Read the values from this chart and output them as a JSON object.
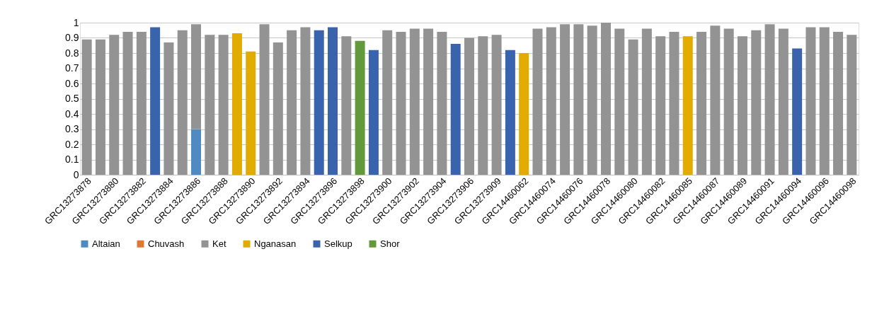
{
  "chart_data": {
    "type": "bar",
    "stacked": true,
    "categories": [
      "GRC13273878",
      null,
      "GRC13273880",
      null,
      "GRC13273882",
      null,
      "GRC13273884",
      null,
      "GRC13273886",
      null,
      "GRC13273888",
      null,
      "GRC13273890",
      null,
      "GRC13273892",
      null,
      "GRC13273894",
      null,
      "GRC13273896",
      null,
      "GRC13273898",
      null,
      "GRC13273900",
      null,
      "GRC13273902",
      null,
      "GRC13273904",
      null,
      "GRC13273906",
      null,
      "GRC13273909",
      null,
      "GRC14460062",
      null,
      "GRC14460074",
      null,
      "GRC14460076",
      null,
      "GRC14460078",
      null,
      "GRC14460080",
      null,
      "GRC14460082",
      null,
      "GRC14460085",
      null,
      "GRC14460087",
      null,
      "GRC14460089",
      null,
      "GRC14460091",
      null,
      "GRC14460094",
      null,
      "GRC14460096",
      null,
      "GRC14460098"
    ],
    "series": [
      {
        "name": "Altaian",
        "color": "#4f8bc0",
        "values": [
          null,
          null,
          null,
          null,
          null,
          null,
          null,
          null,
          0.3,
          null,
          null,
          null,
          null,
          null,
          null,
          null,
          null,
          null,
          null,
          null,
          null,
          null,
          null,
          null,
          null,
          null,
          null,
          null,
          null,
          null,
          null,
          null,
          null,
          null,
          null,
          null,
          null,
          null,
          null,
          null,
          null,
          null,
          null,
          null,
          null,
          null,
          null,
          null,
          null,
          null,
          null,
          null,
          null,
          null,
          null,
          null,
          null
        ]
      },
      {
        "name": "Chuvash",
        "color": "#e07832",
        "values": [
          null,
          null,
          null,
          null,
          null,
          null,
          null,
          null,
          null,
          null,
          null,
          null,
          null,
          null,
          null,
          null,
          null,
          null,
          null,
          null,
          null,
          null,
          null,
          null,
          null,
          null,
          null,
          null,
          null,
          null,
          null,
          null,
          null,
          null,
          null,
          null,
          null,
          null,
          null,
          null,
          null,
          null,
          null,
          null,
          null,
          null,
          null,
          null,
          null,
          null,
          null,
          null,
          null,
          null,
          null,
          null,
          null
        ]
      },
      {
        "name": "Ket",
        "color": "#939393",
        "values": [
          0.89,
          0.89,
          0.92,
          0.94,
          0.94,
          null,
          0.87,
          0.95,
          0.69,
          0.92,
          0.92,
          null,
          null,
          0.99,
          0.87,
          0.95,
          0.97,
          null,
          null,
          0.91,
          null,
          null,
          0.95,
          0.94,
          0.96,
          0.96,
          0.94,
          null,
          0.9,
          0.91,
          0.92,
          null,
          null,
          0.96,
          0.97,
          0.99,
          0.99,
          0.98,
          1.0,
          0.96,
          0.89,
          0.96,
          0.91,
          0.94,
          null,
          0.94,
          0.98,
          0.96,
          0.91,
          0.95,
          0.99,
          0.96,
          null,
          0.97,
          0.97,
          0.94,
          0.92
        ]
      },
      {
        "name": "Nganasan",
        "color": "#e2ab00",
        "values": [
          null,
          null,
          null,
          null,
          null,
          null,
          null,
          null,
          null,
          null,
          null,
          0.93,
          0.81,
          null,
          null,
          null,
          null,
          null,
          null,
          null,
          null,
          null,
          null,
          null,
          null,
          null,
          null,
          null,
          null,
          null,
          null,
          null,
          0.8,
          null,
          null,
          null,
          null,
          null,
          null,
          null,
          null,
          null,
          null,
          null,
          0.91,
          null,
          null,
          null,
          null,
          null,
          null,
          null,
          null,
          null,
          null,
          null,
          null
        ]
      },
      {
        "name": "Selkup",
        "color": "#3a63ad",
        "values": [
          null,
          null,
          null,
          null,
          null,
          0.97,
          null,
          null,
          null,
          null,
          null,
          null,
          null,
          null,
          null,
          null,
          null,
          0.95,
          0.97,
          null,
          null,
          0.82,
          null,
          null,
          null,
          null,
          null,
          0.86,
          null,
          null,
          null,
          0.82,
          null,
          null,
          null,
          null,
          null,
          null,
          null,
          null,
          null,
          null,
          null,
          null,
          null,
          null,
          null,
          null,
          null,
          null,
          null,
          null,
          0.83,
          null,
          null,
          null,
          null
        ]
      },
      {
        "name": "Shor",
        "color": "#629a3b",
        "values": [
          null,
          null,
          null,
          null,
          null,
          null,
          null,
          null,
          null,
          null,
          null,
          null,
          null,
          null,
          null,
          null,
          null,
          null,
          null,
          null,
          0.88,
          null,
          null,
          null,
          null,
          null,
          null,
          null,
          null,
          null,
          null,
          null,
          null,
          null,
          null,
          null,
          null,
          null,
          null,
          null,
          null,
          null,
          null,
          null,
          null,
          null,
          null,
          null,
          null,
          null,
          null,
          null,
          null,
          null,
          null,
          null,
          null
        ]
      }
    ],
    "ylim": [
      0,
      1
    ],
    "yticks": [
      0,
      0.1,
      0.2,
      0.3,
      0.4,
      0.5,
      0.6,
      0.7,
      0.8,
      0.9,
      1
    ],
    "grid": "y",
    "legend": "bottom"
  }
}
